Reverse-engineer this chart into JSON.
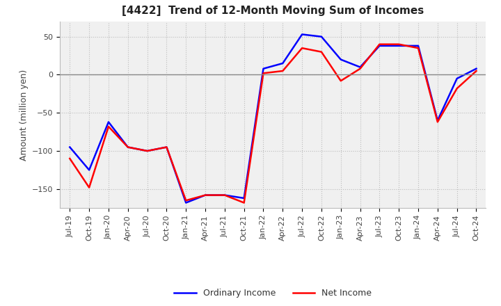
{
  "title": "[4422]  Trend of 12-Month Moving Sum of Incomes",
  "ylabel": "Amount (million yen)",
  "ylim": [
    -175,
    70
  ],
  "yticks": [
    50,
    0,
    -50,
    -100,
    -150
  ],
  "x_labels": [
    "Jul-19",
    "Oct-19",
    "Jan-20",
    "Apr-20",
    "Jul-20",
    "Oct-20",
    "Jan-21",
    "Apr-21",
    "Jul-21",
    "Oct-21",
    "Jan-22",
    "Apr-22",
    "Jul-22",
    "Oct-22",
    "Jan-23",
    "Apr-23",
    "Jul-23",
    "Oct-23",
    "Jan-24",
    "Apr-24",
    "Jul-24",
    "Oct-24"
  ],
  "ordinary_income": [
    -95,
    -125,
    -62,
    -95,
    -100,
    -95,
    -168,
    -158,
    -158,
    -162,
    8,
    15,
    53,
    50,
    20,
    10,
    38,
    38,
    38,
    -60,
    -5,
    8
  ],
  "net_income": [
    -110,
    -148,
    -68,
    -95,
    -100,
    -95,
    -165,
    -158,
    -158,
    -168,
    2,
    5,
    35,
    30,
    -8,
    8,
    40,
    40,
    35,
    -62,
    -18,
    5
  ],
  "ordinary_color": "#0000ff",
  "net_color": "#ff0000",
  "grid_color": "#bbbbbb",
  "zero_line_color": "#888888",
  "background_color": "#ffffff",
  "plot_bg_color": "#f0f0f0",
  "title_fontsize": 11,
  "legend_fontsize": 9,
  "tick_fontsize": 8,
  "ylabel_fontsize": 9
}
